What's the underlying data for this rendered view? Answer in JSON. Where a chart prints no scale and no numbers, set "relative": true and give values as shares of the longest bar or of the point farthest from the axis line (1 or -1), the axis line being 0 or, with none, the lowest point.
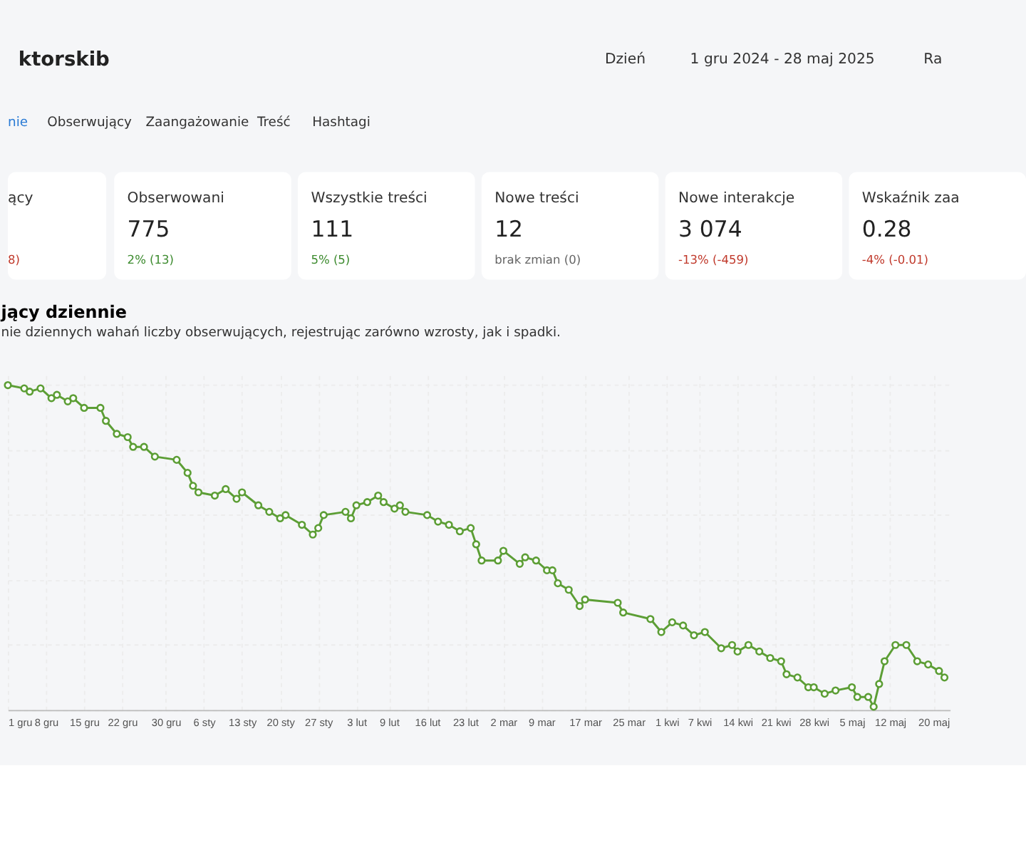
{
  "chart_data": {
    "type": "line",
    "title": "jący dziennie",
    "subtitle": "nie dziennych wahań liczby obserwujących, rejestrując zarówno wzrosty, jak i spadki.",
    "relative": true,
    "grid": true,
    "marker": "circle",
    "line_style": "solid",
    "annotations": [
      "ktorskib",
      "Dzień",
      "1 gru 2024 - 28 maj 2025",
      "Ra",
      "nie",
      "Obserwujący",
      "Zaangażowanie",
      "Treść",
      "Hashtagi",
      "ący",
      "8)",
      "Obserwowani",
      "775",
      "2% (13)",
      "Wszystkie treści",
      "111",
      "5% (5)",
      "Nowe treści",
      "12",
      "brak zmian (0)",
      "Nowe interakcje",
      "3 074",
      "-13% (-459)",
      "Wskaźnik zaa",
      "0.28",
      "-4% (-0.01)"
    ],
    "xlim": [
      "2024-12-01",
      "2025-05-23"
    ],
    "xticks": [
      {
        "value": "2024-12-01",
        "label": "1 gru"
      },
      {
        "value": "2024-12-08",
        "label": "8 gru"
      },
      {
        "value": "2024-12-15",
        "label": "15 gru"
      },
      {
        "value": "2024-12-22",
        "label": "22 gru"
      },
      {
        "value": "2024-12-30",
        "label": "30 gru"
      },
      {
        "value": "2025-01-06",
        "label": "6 sty"
      },
      {
        "value": "2025-01-13",
        "label": "13 sty"
      },
      {
        "value": "2025-01-20",
        "label": "20 sty"
      },
      {
        "value": "2025-01-27",
        "label": "27 sty"
      },
      {
        "value": "2025-02-03",
        "label": "3 lut"
      },
      {
        "value": "2025-02-09",
        "label": "9 lut"
      },
      {
        "value": "2025-02-16",
        "label": "16 lut"
      },
      {
        "value": "2025-02-23",
        "label": "23 lut"
      },
      {
        "value": "2025-03-02",
        "label": "2 mar"
      },
      {
        "value": "2025-03-09",
        "label": "9 mar"
      },
      {
        "value": "2025-03-17",
        "label": "17 mar"
      },
      {
        "value": "2025-03-25",
        "label": "25 mar"
      },
      {
        "value": "2025-04-01",
        "label": "1 kwi"
      },
      {
        "value": "2025-04-07",
        "label": "7 kwi"
      },
      {
        "value": "2025-04-14",
        "label": "14 kwi"
      },
      {
        "value": "2025-04-21",
        "label": "21 kwi"
      },
      {
        "value": "2025-04-28",
        "label": "28 kwi"
      },
      {
        "value": "2025-05-05",
        "label": "5 maj"
      },
      {
        "value": "2025-05-12",
        "label": "12 maj"
      },
      {
        "value": "2025-05-20",
        "label": "20 maj"
      }
    ],
    "x": [
      "2024-12-01",
      "2024-12-04",
      "2024-12-05",
      "2024-12-07",
      "2024-12-09",
      "2024-12-10",
      "2024-12-12",
      "2024-12-13",
      "2024-12-15",
      "2024-12-18",
      "2024-12-19",
      "2024-12-21",
      "2024-12-23",
      "2024-12-24",
      "2024-12-26",
      "2024-12-28",
      "2025-01-01",
      "2025-01-03",
      "2025-01-04",
      "2025-01-05",
      "2025-01-08",
      "2025-01-10",
      "2025-01-12",
      "2025-01-13",
      "2025-01-16",
      "2025-01-18",
      "2025-01-20",
      "2025-01-21",
      "2025-01-24",
      "2025-01-26",
      "2025-01-27",
      "2025-01-28",
      "2025-02-01",
      "2025-02-02",
      "2025-02-03",
      "2025-02-05",
      "2025-02-07",
      "2025-02-08",
      "2025-02-10",
      "2025-02-11",
      "2025-02-12",
      "2025-02-16",
      "2025-02-18",
      "2025-02-20",
      "2025-02-22",
      "2025-02-24",
      "2025-02-25",
      "2025-02-26",
      "2025-03-01",
      "2025-03-02",
      "2025-03-05",
      "2025-03-06",
      "2025-03-08",
      "2025-03-10",
      "2025-03-11",
      "2025-03-12",
      "2025-03-14",
      "2025-03-16",
      "2025-03-17",
      "2025-03-23",
      "2025-03-24",
      "2025-03-29",
      "2025-03-31",
      "2025-04-02",
      "2025-04-04",
      "2025-04-06",
      "2025-04-08",
      "2025-04-11",
      "2025-04-13",
      "2025-04-14",
      "2025-04-16",
      "2025-04-18",
      "2025-04-20",
      "2025-04-22",
      "2025-04-23",
      "2025-04-25",
      "2025-04-27",
      "2025-04-28",
      "2025-04-30",
      "2025-05-02",
      "2025-05-05",
      "2025-05-06",
      "2025-05-08",
      "2025-05-09",
      "2025-05-10",
      "2025-05-11",
      "2025-05-13",
      "2025-05-15",
      "2025-05-17",
      "2025-05-19",
      "2025-05-21",
      "2025-05-22"
    ],
    "series": [
      {
        "color": "#5c9e35",
        "values": [
          1.0,
          0.99,
          0.98,
          0.99,
          0.96,
          0.97,
          0.95,
          0.96,
          0.93,
          0.93,
          0.89,
          0.85,
          0.84,
          0.81,
          0.81,
          0.78,
          0.77,
          0.73,
          0.69,
          0.67,
          0.66,
          0.68,
          0.65,
          0.67,
          0.63,
          0.61,
          0.59,
          0.6,
          0.57,
          0.54,
          0.56,
          0.6,
          0.61,
          0.59,
          0.63,
          0.64,
          0.66,
          0.64,
          0.62,
          0.63,
          0.61,
          0.6,
          0.58,
          0.57,
          0.55,
          0.56,
          0.51,
          0.46,
          0.46,
          0.49,
          0.45,
          0.47,
          0.46,
          0.43,
          0.43,
          0.39,
          0.37,
          0.32,
          0.34,
          0.33,
          0.3,
          0.28,
          0.24,
          0.27,
          0.26,
          0.23,
          0.24,
          0.19,
          0.2,
          0.18,
          0.2,
          0.18,
          0.16,
          0.15,
          0.11,
          0.1,
          0.07,
          0.07,
          0.05,
          0.06,
          0.07,
          0.04,
          0.04,
          0.01,
          0.08,
          0.15,
          0.2,
          0.2,
          0.15,
          0.14,
          0.12,
          0.1
        ]
      }
    ]
  }
}
